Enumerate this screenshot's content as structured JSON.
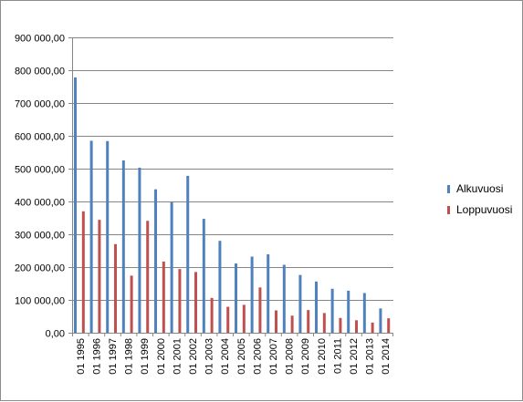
{
  "chart_data": {
    "type": "bar",
    "title": "",
    "xlabel": "",
    "ylabel": "",
    "ylim": [
      0,
      900000
    ],
    "yticks": [
      0,
      100000,
      200000,
      300000,
      400000,
      500000,
      600000,
      700000,
      800000,
      900000
    ],
    "ytick_labels": [
      "0,00",
      "100 000,00",
      "200 000,00",
      "300 000,00",
      "400 000,00",
      "500 000,00",
      "600 000,00",
      "700 000,00",
      "800 000,00",
      "900 000,00"
    ],
    "grid": true,
    "legend_position": "right",
    "categories": [
      "01 1995",
      "01 1996",
      "01 1997",
      "01 1998",
      "01 1999",
      "01 2000",
      "01 2001",
      "01 2002",
      "01 2003",
      "01 2004",
      "01 2005",
      "01 2006",
      "01 2007",
      "01 2008",
      "01 2009",
      "01 2010",
      "01 2011",
      "01 2012",
      "01 2013",
      "01 2014"
    ],
    "series": [
      {
        "name": "Alkuvuosi",
        "color": "#4f81bd",
        "values": [
          778000,
          585000,
          584000,
          525000,
          503000,
          437000,
          398000,
          478000,
          347000,
          280000,
          211000,
          232000,
          239000,
          207000,
          176000,
          156000,
          134000,
          128000,
          121000,
          74000
        ]
      },
      {
        "name": "Loppuvuosi",
        "color": "#c0504d",
        "values": [
          370000,
          344000,
          270000,
          174000,
          341000,
          217000,
          194000,
          185000,
          106000,
          79000,
          85000,
          138000,
          68000,
          52000,
          69000,
          60000,
          45000,
          38000,
          31000,
          44000
        ]
      }
    ]
  }
}
